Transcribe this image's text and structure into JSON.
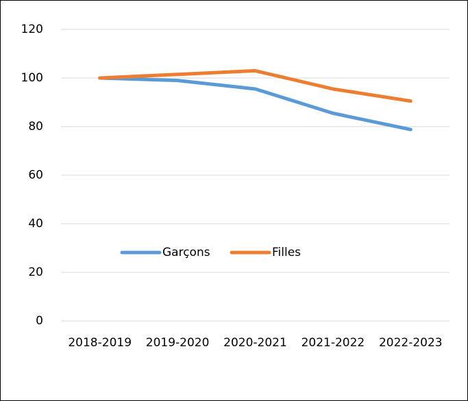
{
  "chart_data": {
    "type": "line",
    "title": "",
    "xlabel": "",
    "ylabel": "",
    "categories": [
      "2018-2019",
      "2019-2020",
      "2020-2021",
      "2021-2022",
      "2022-2023"
    ],
    "series": [
      {
        "name": "Garçons",
        "color": "#5B9BD5",
        "values": [
          100,
          99,
          95.5,
          85.5,
          78.8
        ]
      },
      {
        "name": "Filles",
        "color": "#ED7D31",
        "values": [
          100,
          101.5,
          103,
          95.5,
          90.5
        ]
      }
    ],
    "ylim": [
      0,
      120
    ],
    "yticks": [
      "0",
      "20",
      "40",
      "60",
      "80",
      "100",
      "120"
    ],
    "grid": true,
    "gridColor": "#D9D9D9",
    "legend": "inside-center"
  }
}
